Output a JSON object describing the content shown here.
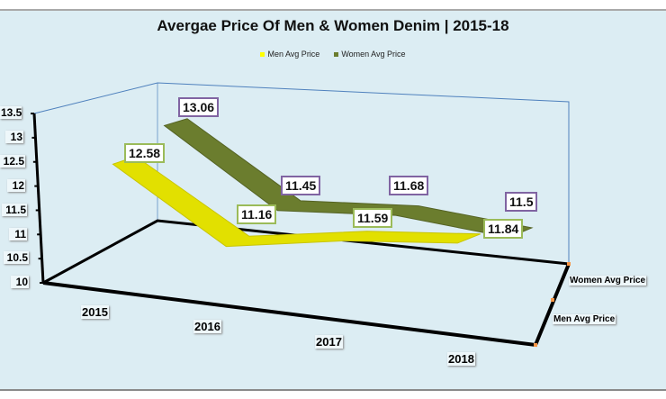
{
  "chart_data": {
    "type": "line",
    "subtype": "3d-line",
    "title": "Avergae Price Of Men & Women Denim | 2015-18",
    "categories": [
      "2015",
      "2016",
      "2017",
      "2018"
    ],
    "series": [
      {
        "name": "Men Avg Price",
        "values": [
          12.58,
          11.16,
          11.59,
          11.84
        ],
        "labels": [
          "12.58",
          "11.16",
          "11.59",
          "11.84"
        ],
        "color": "#e2e000",
        "label_border": "#9bbb59"
      },
      {
        "name": "Women Avg Price",
        "values": [
          13.06,
          11.45,
          11.68,
          11.5
        ],
        "labels": [
          "13.06",
          "11.45",
          "11.68",
          "11.5"
        ],
        "color": "#6b7d2e",
        "label_border": "#8064a2"
      }
    ],
    "depth_labels": [
      "Women Avg Price",
      "Men Avg Price"
    ],
    "yticks": [
      "13.5",
      "13",
      "12.5",
      "12",
      "11.5",
      "11",
      "10.5",
      "10"
    ],
    "ylim": [
      10,
      13.5
    ],
    "legend": "top"
  }
}
